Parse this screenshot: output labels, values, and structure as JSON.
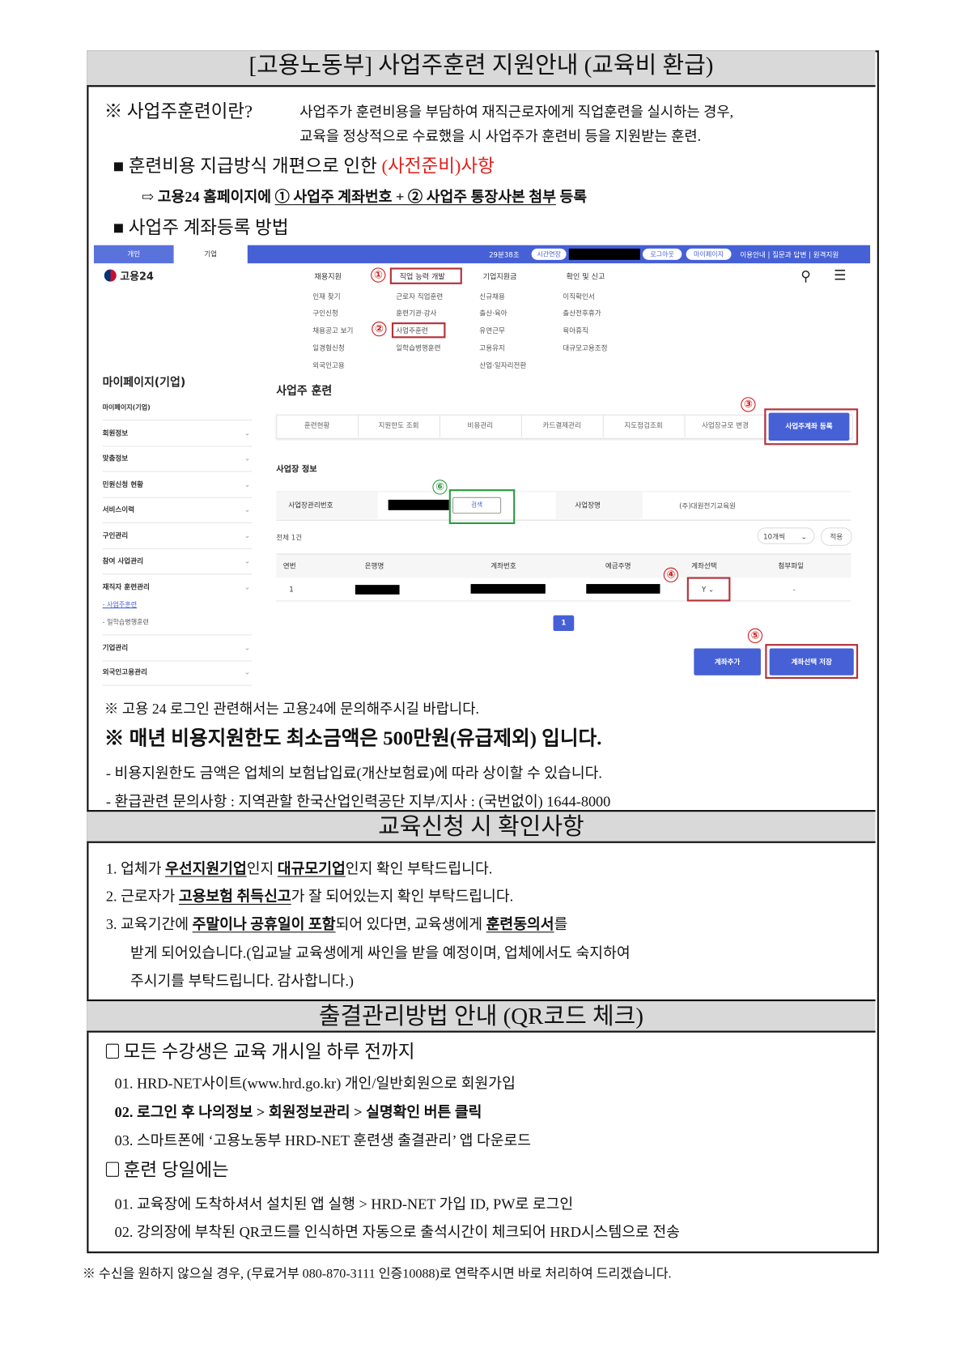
{
  "title": "[고용노동부] 사업주훈련 지원안내 (교육비 환급)",
  "intro": {
    "label": "※ 사업주훈련이란?",
    "line1": "사업주가 훈련비용을 부담하여 재직근로자에게 직업훈련을 실시하는 경우,",
    "line2": "교육을 정상적으로 수료했을 시 사업주가 훈련비 등을 지원받는 훈련."
  },
  "notice": {
    "bullet": "■",
    "text": "훈련비용 지급방식 개편으로 인한 ",
    "red": "(사전준비)사항"
  },
  "arrow": {
    "icon": "⇨",
    "pre": "고용24 홈페이지에 ",
    "underlined": "① 사업주 계좌번호 + ② 사업주 통장사본 첨부",
    "post": " 등록"
  },
  "method": {
    "bullet": "■",
    "text": "사업주 계좌등록 방법"
  },
  "screenshot": {
    "top_tabs": [
      "개인",
      "기업"
    ],
    "timer": "29분38초",
    "extend": "시간연장",
    "logout": "로그아웃",
    "mypage": "마이페이지",
    "util_links": "이용안내 | 질문과 답변 | 원격지원",
    "logo": "고용24",
    "menu": [
      {
        "header": "채용지원",
        "items": [
          "인재 찾기",
          "구인신청",
          "채용공고 보기",
          "일경험신청",
          "외국인고용"
        ]
      },
      {
        "header": "직업 능력 개발",
        "items": [
          "근로자 직업훈련",
          "훈련기관·강사",
          "사업주훈련",
          "일학습병행훈련"
        ]
      },
      {
        "header": "기업지원금",
        "items": [
          "신규채용",
          "출산·육아",
          "유연근무",
          "고용유지",
          "산업·일자리전환"
        ]
      },
      {
        "header": "확인 및 신고",
        "items": [
          "이직확인서",
          "출산전후휴가",
          "육아휴직",
          "대규모고용조정"
        ]
      }
    ],
    "sidebar": {
      "title": "마이페이지(기업)",
      "items": [
        "마이페이지(기업)",
        "회원정보",
        "맞춤정보",
        "민원신청 현황",
        "서비스이력",
        "구인관리",
        "참여 사업관리",
        "재직자 훈련관리",
        "- 사업주훈련",
        "- 일학습병행훈련",
        "기업관리",
        "외국인고용관리"
      ]
    },
    "page_title": "사업주 훈련",
    "tabs": [
      "훈련현황",
      "지원한도 조회",
      "비용관리",
      "카드결제관리",
      "지도점검조회",
      "사업장규모 변경",
      "사업주계좌 등록"
    ],
    "section": "사업장 정보",
    "info": {
      "mgmt_label": "사업장관리번호",
      "search": "검색",
      "name_label": "사업장명",
      "name_value": "(주)대원전기교육원"
    },
    "total": "전체 1건",
    "page_size": "10개씩",
    "apply": "적용",
    "columns": [
      "연번",
      "은행명",
      "계좌번호",
      "예금주명",
      "계좌선택",
      "첨부파일"
    ],
    "row": {
      "no": "1",
      "select": "Y",
      "file": "-"
    },
    "page": "1",
    "add_account": "계좌추가",
    "save_selection": "계좌선택 저장",
    "markers": [
      "①",
      "②",
      "③",
      "④",
      "⑤",
      "⑥"
    ],
    "accent": "#4660d6",
    "highlight": "#b3303a",
    "green": "#2e9a45"
  },
  "notes": {
    "login": "※ 고용 24 로그인 관련해서는 고용24에 문의해주시길 바랍니다.",
    "minimum": "※ 매년 비용지원한도 최소금액은 500만원(유급제외) 입니다.",
    "dash1": "- 비용지원한도 금액은 업체의 보험납입료(개산보험료)에 따라 상이할 수 있습니다.",
    "dash2": "- 환급관련 문의사항 : 지역관할 한국산업인력공단 지부/지사 : (국번없이) 1644-8000"
  },
  "check": {
    "title": "교육신청 시 확인사항",
    "i1": {
      "a": "1. 업체가 ",
      "u1": "우선지원기업",
      "b": "인지 ",
      "u2": "대규모기업",
      "c": "인지 확인 부탁드립니다."
    },
    "i2": {
      "a": "2. 근로자가 ",
      "u1": "고용보험 취득신고",
      "b": "가 잘 되어있는지 확인 부탁드립니다."
    },
    "i3": {
      "a": "3. 교육기간에 ",
      "u1": "주말이나 공휴일이 포함",
      "b": "되어 있다면, 교육생에게 ",
      "u2": "훈련동의서",
      "c": "를"
    },
    "i3_l2": "받게 되어있습니다.(입교날 교육생에게 싸인을 받을 예정이며, 업체에서도 숙지하여",
    "i3_l3": "주시기를 부탁드립니다. 감사합니다.)"
  },
  "attendance": {
    "title": "출결관리방법 안내 (QR코드 체크)",
    "h1": "모든 수강생은 교육 개시일 하루 전까지",
    "s1": [
      "01. HRD-NET사이트(www.hrd.go.kr) 개인/일반회원으로 회원가입",
      "02. 로그인 후 나의정보 > 회원정보관리 > 실명확인 버튼 클릭",
      "03. 스마트폰에 ‘고용노동부 HRD-NET 훈련생 출결관리’ 앱 다운로드"
    ],
    "h2": "훈련 당일에는",
    "s2": [
      "01. 교육장에 도착하셔서 설치된 앱 실행 > HRD-NET 가입 ID, PW로 로그인",
      "02. 강의장에 부착된 QR코드를 인식하면 자동으로 출석시간이 체크되어 HRD시스템으로 전송"
    ]
  },
  "footer": "※ 수신을 원하지 않으실 경우, (무료거부 080-870-3111 인증10088)로 연락주시면 바로 처리하여 드리겠습니다."
}
